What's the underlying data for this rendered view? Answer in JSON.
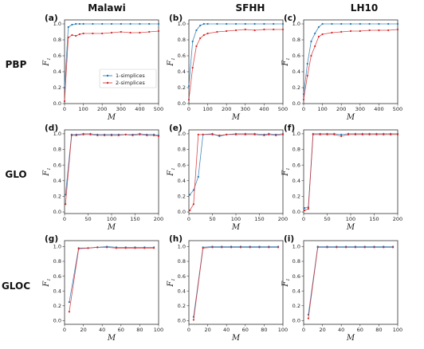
{
  "column_headers": [
    "Malawi",
    "SFHH",
    "LH10"
  ],
  "row_headers": [
    "PBP",
    "GLO",
    "GLOC"
  ],
  "colors": {
    "series1": "#1f77b4",
    "series2": "#d62728"
  },
  "chart_data": [
    {
      "panel": "(a)",
      "type": "line",
      "xlabel": "M",
      "ylabel": "F1",
      "xlim": [
        0,
        500
      ],
      "ylim": [
        0,
        1.05
      ],
      "xticks": [
        0,
        100,
        200,
        300,
        400,
        500
      ],
      "yticks": [
        0.0,
        0.2,
        0.4,
        0.6,
        0.8,
        1.0
      ],
      "legend": {
        "position": "bottom-right",
        "entries": [
          "1-simplices",
          "2-simplices"
        ]
      },
      "series": [
        {
          "name": "1-simplices",
          "x": [
            0,
            20,
            40,
            60,
            80,
            100,
            150,
            200,
            250,
            300,
            350,
            400,
            450,
            500
          ],
          "y": [
            0.2,
            0.96,
            0.99,
            1.0,
            1.0,
            1.0,
            1.0,
            1.0,
            1.0,
            1.0,
            1.0,
            1.0,
            1.0,
            1.0
          ]
        },
        {
          "name": "2-simplices",
          "x": [
            0,
            20,
            40,
            60,
            80,
            100,
            150,
            200,
            250,
            300,
            350,
            400,
            450,
            500
          ],
          "y": [
            0.03,
            0.83,
            0.86,
            0.85,
            0.87,
            0.88,
            0.88,
            0.88,
            0.89,
            0.9,
            0.89,
            0.89,
            0.9,
            0.91
          ]
        }
      ]
    },
    {
      "panel": "(b)",
      "type": "line",
      "xlabel": "M",
      "ylabel": "F1",
      "xlim": [
        0,
        500
      ],
      "ylim": [
        0,
        1.05
      ],
      "xticks": [
        0,
        100,
        200,
        300,
        400,
        500
      ],
      "yticks": [
        0.0,
        0.2,
        0.4,
        0.6,
        0.8,
        1.0
      ],
      "series": [
        {
          "name": "1-simplices",
          "x": [
            0,
            20,
            40,
            60,
            80,
            100,
            150,
            200,
            250,
            300,
            350,
            400,
            450,
            500
          ],
          "y": [
            0.22,
            0.78,
            0.92,
            0.98,
            1.0,
            1.0,
            1.0,
            1.0,
            1.0,
            1.0,
            1.0,
            1.0,
            1.0,
            1.0
          ]
        },
        {
          "name": "2-simplices",
          "x": [
            0,
            20,
            40,
            60,
            80,
            100,
            150,
            200,
            250,
            300,
            350,
            400,
            450,
            500
          ],
          "y": [
            0.05,
            0.45,
            0.72,
            0.82,
            0.86,
            0.88,
            0.9,
            0.91,
            0.92,
            0.93,
            0.92,
            0.93,
            0.93,
            0.93
          ]
        }
      ]
    },
    {
      "panel": "(c)",
      "type": "line",
      "xlabel": "M",
      "ylabel": "F1",
      "xlim": [
        0,
        500
      ],
      "ylim": [
        0,
        1.05
      ],
      "xticks": [
        0,
        100,
        200,
        300,
        400,
        500
      ],
      "yticks": [
        0.0,
        0.2,
        0.4,
        0.6,
        0.8,
        1.0
      ],
      "series": [
        {
          "name": "1-simplices",
          "x": [
            0,
            20,
            40,
            60,
            80,
            100,
            150,
            200,
            250,
            300,
            350,
            400,
            450,
            500
          ],
          "y": [
            0.12,
            0.5,
            0.78,
            0.88,
            0.96,
            1.0,
            1.0,
            1.0,
            1.0,
            1.0,
            1.0,
            1.0,
            1.0,
            1.0
          ]
        },
        {
          "name": "2-simplices",
          "x": [
            0,
            20,
            40,
            60,
            80,
            100,
            150,
            200,
            250,
            300,
            350,
            400,
            450,
            500
          ],
          "y": [
            0.05,
            0.35,
            0.6,
            0.72,
            0.84,
            0.87,
            0.89,
            0.9,
            0.91,
            0.91,
            0.92,
            0.92,
            0.92,
            0.93
          ]
        }
      ]
    },
    {
      "panel": "(d)",
      "type": "line",
      "xlabel": "M",
      "ylabel": "F1",
      "xlim": [
        0,
        200
      ],
      "ylim": [
        -0.02,
        1.05
      ],
      "xticks": [
        0,
        50,
        100,
        150,
        200
      ],
      "yticks": [
        0.0,
        0.2,
        0.4,
        0.6,
        0.8,
        1.0
      ],
      "series": [
        {
          "name": "1-simplices",
          "x": [
            2,
            15,
            25,
            40,
            55,
            70,
            85,
            100,
            115,
            130,
            145,
            160,
            175,
            190,
            200
          ],
          "y": [
            0.22,
            0.99,
            0.99,
            1.0,
            1.0,
            0.99,
            0.99,
            0.99,
            0.99,
            0.99,
            0.99,
            1.0,
            0.99,
            0.99,
            0.98
          ]
        },
        {
          "name": "2-simplices",
          "x": [
            2,
            15,
            25,
            40,
            55,
            70,
            85,
            100,
            115,
            130,
            145,
            160,
            175,
            190,
            200
          ],
          "y": [
            0.1,
            0.98,
            0.98,
            0.99,
            0.99,
            0.98,
            0.98,
            0.98,
            0.98,
            0.99,
            0.98,
            0.99,
            0.98,
            0.98,
            0.97
          ]
        }
      ]
    },
    {
      "panel": "(e)",
      "type": "line",
      "xlabel": "M",
      "ylabel": "F1",
      "xlim": [
        0,
        200
      ],
      "ylim": [
        -0.02,
        1.05
      ],
      "xticks": [
        0,
        50,
        100,
        150,
        200
      ],
      "yticks": [
        0.0,
        0.2,
        0.4,
        0.6,
        0.8,
        1.0
      ],
      "series": [
        {
          "name": "1-simplices",
          "x": [
            2,
            10,
            20,
            30,
            50,
            65,
            80,
            100,
            120,
            140,
            160,
            170,
            185,
            200
          ],
          "y": [
            0.22,
            0.28,
            0.45,
            0.99,
            1.0,
            0.97,
            0.99,
            1.0,
            1.0,
            1.0,
            0.99,
            1.0,
            0.99,
            1.0
          ]
        },
        {
          "name": "2-simplices",
          "x": [
            2,
            10,
            20,
            30,
            50,
            65,
            80,
            100,
            120,
            140,
            160,
            170,
            185,
            200
          ],
          "y": [
            0.02,
            0.1,
            0.99,
            0.99,
            0.99,
            0.98,
            0.99,
            0.99,
            0.99,
            0.99,
            0.98,
            0.99,
            0.98,
            0.99
          ]
        }
      ]
    },
    {
      "panel": "(f)",
      "type": "line",
      "xlabel": "M",
      "ylabel": "F1",
      "xlim": [
        0,
        200
      ],
      "ylim": [
        -0.02,
        1.05
      ],
      "xticks": [
        0,
        50,
        100,
        150,
        200
      ],
      "yticks": [
        0.0,
        0.2,
        0.4,
        0.6,
        0.8,
        1.0
      ],
      "series": [
        {
          "name": "1-simplices",
          "x": [
            2,
            10,
            20,
            35,
            50,
            65,
            80,
            95,
            110,
            125,
            140,
            155,
            170,
            185,
            200
          ],
          "y": [
            0.05,
            0.06,
            1.0,
            1.0,
            1.0,
            1.0,
            0.99,
            1.0,
            1.0,
            1.0,
            1.0,
            1.0,
            1.0,
            1.0,
            1.0
          ]
        },
        {
          "name": "2-simplices",
          "x": [
            2,
            10,
            20,
            35,
            50,
            65,
            80,
            95,
            110,
            125,
            140,
            155,
            170,
            185,
            200
          ],
          "y": [
            0.02,
            0.04,
            0.99,
            0.99,
            0.99,
            0.99,
            0.97,
            0.99,
            0.99,
            0.99,
            0.99,
            0.99,
            0.99,
            0.99,
            0.99
          ]
        }
      ]
    },
    {
      "panel": "(g)",
      "type": "line",
      "xlabel": "M",
      "ylabel": "F1",
      "xlim": [
        0,
        100
      ],
      "ylim": [
        -0.05,
        1.08
      ],
      "xticks": [
        0,
        20,
        40,
        60,
        80,
        100
      ],
      "yticks": [
        0.0,
        0.2,
        0.4,
        0.6,
        0.8,
        1.0
      ],
      "series": [
        {
          "name": "1-simplices",
          "x": [
            5,
            15,
            25,
            35,
            45,
            55,
            65,
            75,
            85,
            95
          ],
          "y": [
            0.25,
            0.98,
            0.98,
            0.99,
            1.0,
            0.99,
            0.99,
            0.99,
            0.99,
            0.99
          ]
        },
        {
          "name": "2-simplices",
          "x": [
            5,
            15,
            25,
            35,
            45,
            55,
            65,
            75,
            85,
            95
          ],
          "y": [
            0.12,
            0.97,
            0.98,
            0.99,
            0.99,
            0.98,
            0.98,
            0.98,
            0.98,
            0.98
          ]
        }
      ]
    },
    {
      "panel": "(h)",
      "type": "line",
      "xlabel": "M",
      "ylabel": "F1",
      "xlim": [
        0,
        100
      ],
      "ylim": [
        -0.05,
        1.08
      ],
      "xticks": [
        0,
        20,
        40,
        60,
        80,
        100
      ],
      "yticks": [
        0.0,
        0.2,
        0.4,
        0.6,
        0.8,
        1.0
      ],
      "series": [
        {
          "name": "1-simplices",
          "x": [
            5,
            15,
            25,
            35,
            45,
            55,
            65,
            75,
            85,
            95
          ],
          "y": [
            0.05,
            0.99,
            1.0,
            1.0,
            1.0,
            1.0,
            1.0,
            1.0,
            1.0,
            1.0
          ]
        },
        {
          "name": "2-simplices",
          "x": [
            5,
            15,
            25,
            35,
            45,
            55,
            65,
            75,
            85,
            95
          ],
          "y": [
            0.01,
            0.98,
            0.99,
            0.99,
            0.99,
            0.99,
            0.99,
            0.99,
            0.99,
            0.99
          ]
        }
      ]
    },
    {
      "panel": "(i)",
      "type": "line",
      "xlabel": "M",
      "ylabel": "F1",
      "xlim": [
        0,
        100
      ],
      "ylim": [
        -0.05,
        1.08
      ],
      "xticks": [
        0,
        20,
        40,
        60,
        80,
        100
      ],
      "yticks": [
        0.0,
        0.2,
        0.4,
        0.6,
        0.8,
        1.0
      ],
      "series": [
        {
          "name": "1-simplices",
          "x": [
            5,
            15,
            25,
            35,
            45,
            55,
            65,
            75,
            85,
            95
          ],
          "y": [
            0.08,
            1.0,
            1.0,
            1.0,
            1.0,
            1.0,
            1.0,
            1.0,
            1.0,
            1.0
          ]
        },
        {
          "name": "2-simplices",
          "x": [
            5,
            15,
            25,
            35,
            45,
            55,
            65,
            75,
            85,
            95
          ],
          "y": [
            0.03,
            0.99,
            0.99,
            0.99,
            0.99,
            0.99,
            0.99,
            0.99,
            0.99,
            0.99
          ]
        }
      ]
    }
  ]
}
